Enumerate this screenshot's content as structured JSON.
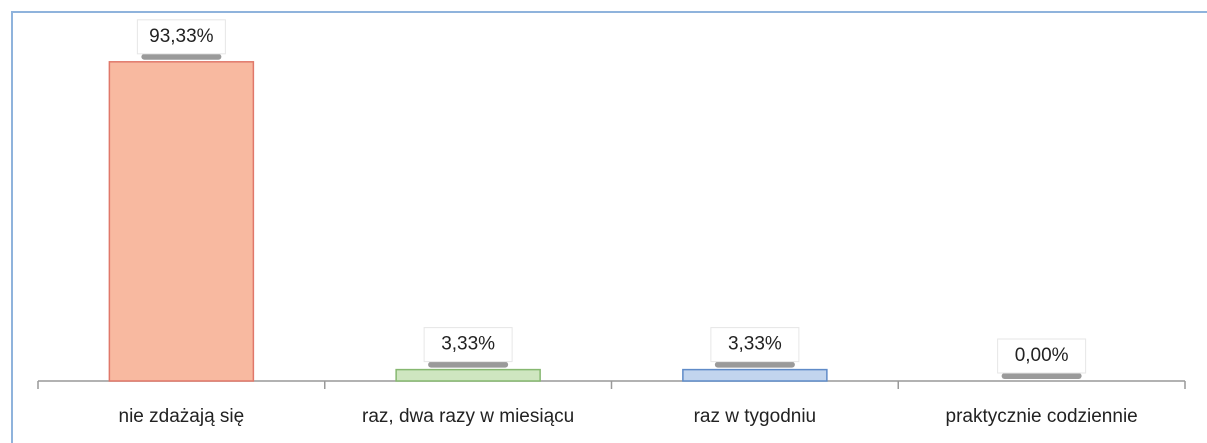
{
  "chart_data": {
    "type": "bar",
    "categories": [
      "nie zdażają się",
      "raz, dwa razy w miesiącu",
      "raz w tygodniu",
      "praktycznie codziennie"
    ],
    "values": [
      93.33,
      3.33,
      3.33,
      0.0
    ],
    "value_labels": [
      "93,33%",
      "3,33%",
      "3,33%",
      "0,00%"
    ],
    "colors": [
      "#f8b9a0",
      "#cfe6c0",
      "#c2d5ee",
      "#bfbfbf"
    ],
    "edge_colors": [
      "#e0786a",
      "#86b870",
      "#5f8bc8",
      "#8c8c8c"
    ],
    "ylim": [
      0,
      100
    ]
  }
}
